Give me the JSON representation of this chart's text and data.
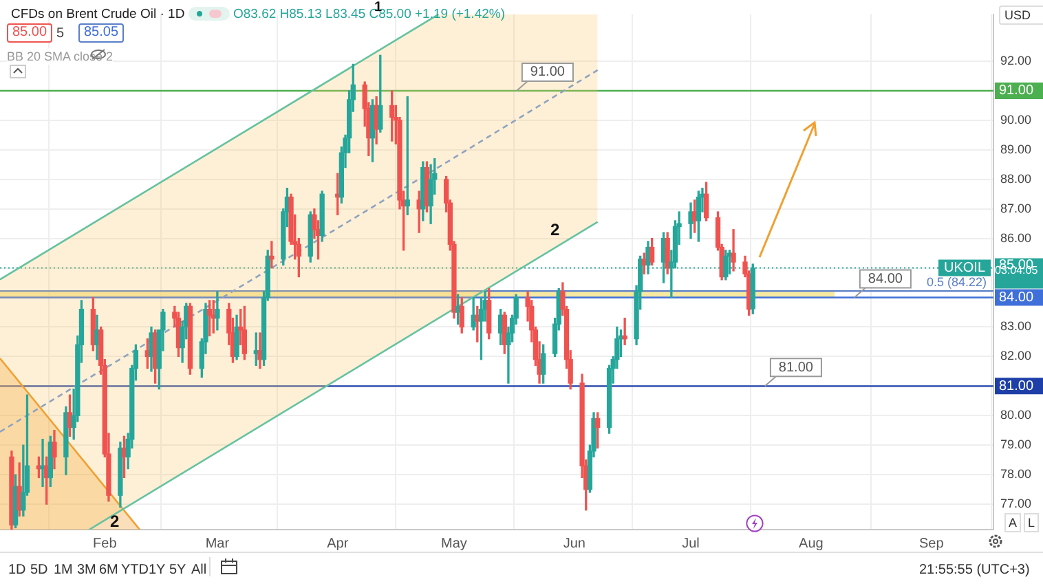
{
  "chart_data": {
    "type": "candlestick",
    "title": "CFDs on Brent Crude Oil · 1D",
    "subtitle": "O83.62 H85.13 L83.45 C85.00 +1.19 (+1.42%)",
    "x": [
      "--01-08",
      "--01-09",
      "--01-10",
      "--01-11",
      "--01-12",
      "--01-15",
      "--01-16",
      "--01-17",
      "--01-18",
      "--01-19",
      "--01-22",
      "--01-23",
      "--01-24",
      "--01-25",
      "--01-26",
      "--01-29",
      "--01-30",
      "--01-31",
      "--02-01",
      "--02-02",
      "--02-05",
      "--02-06",
      "--02-07",
      "--02-08",
      "--02-09",
      "--02-12",
      "--02-13",
      "--02-14",
      "--02-15",
      "--02-16",
      "--02-19",
      "--02-20",
      "--02-21",
      "--02-22",
      "--02-23",
      "--02-26",
      "--02-27",
      "--02-28",
      "--02-29",
      "--03-01",
      "--03-04",
      "--03-05",
      "--03-06",
      "--03-07",
      "--03-08",
      "--03-11",
      "--03-12",
      "--03-13",
      "--03-14",
      "--03-15",
      "--03-18",
      "--03-19",
      "--03-20",
      "--03-21",
      "--03-22",
      "--03-25",
      "--03-26",
      "--03-27",
      "--03-28",
      "--04-01",
      "--04-02",
      "--04-03",
      "--04-04",
      "--04-05",
      "--04-08",
      "--04-09",
      "--04-10",
      "--04-11",
      "--04-12",
      "--04-15",
      "--04-16",
      "--04-17",
      "--04-18",
      "--04-19",
      "--04-22",
      "--04-23",
      "--04-24",
      "--04-25",
      "--04-26",
      "--04-29",
      "--04-30",
      "--05-01",
      "--05-02",
      "--05-03",
      "--05-06",
      "--05-07",
      "--05-08",
      "--05-09",
      "--05-10",
      "--05-13",
      "--05-14",
      "--05-15",
      "--05-16",
      "--05-17",
      "--05-20",
      "--05-21",
      "--05-22",
      "--05-23",
      "--05-24",
      "--05-27",
      "--05-28",
      "--05-29",
      "--05-30",
      "--05-31",
      "--06-03",
      "--06-04",
      "--06-05",
      "--06-06",
      "--06-07",
      "--06-10",
      "--06-11",
      "--06-12",
      "--06-13",
      "--06-14",
      "--06-17",
      "--06-18",
      "--06-19",
      "--06-20",
      "--06-21",
      "--06-24",
      "--06-25",
      "--06-26",
      "--06-27",
      "--06-28",
      "--07-01",
      "--07-02",
      "--07-03",
      "--07-04",
      "--07-05",
      "--07-08",
      "--07-09",
      "--07-10",
      "--07-11",
      "--07-12",
      "--07-15",
      "--07-16",
      "--07-17"
    ],
    "ohlc": [
      [
        78.6,
        78.8,
        76.15,
        76.3
      ],
      [
        76.3,
        78.0,
        76.2,
        77.6
      ],
      [
        77.6,
        78.4,
        76.6,
        76.8
      ],
      [
        76.8,
        79.0,
        76.6,
        77.4
      ],
      [
        77.4,
        80.7,
        77.3,
        78.3
      ],
      [
        78.3,
        78.6,
        77.9,
        78.2
      ],
      [
        78.2,
        79.2,
        77.6,
        78.3
      ],
      [
        78.3,
        78.6,
        77.0,
        77.9
      ],
      [
        77.9,
        79.3,
        77.6,
        79.1
      ],
      [
        79.1,
        79.5,
        78.2,
        78.6
      ],
      [
        78.6,
        80.3,
        78.0,
        80.1
      ],
      [
        80.1,
        80.7,
        79.3,
        79.6
      ],
      [
        79.6,
        80.9,
        79.2,
        80.0
      ],
      [
        80.0,
        82.7,
        79.8,
        82.4
      ],
      [
        82.4,
        83.9,
        81.8,
        83.6
      ],
      [
        83.6,
        84.0,
        82.2,
        82.4
      ],
      [
        82.4,
        83.4,
        81.9,
        82.9
      ],
      [
        82.9,
        83.0,
        81.4,
        81.7
      ],
      [
        81.7,
        81.9,
        78.6,
        78.7
      ],
      [
        78.7,
        79.4,
        77.1,
        77.3
      ],
      [
        77.3,
        79.1,
        76.9,
        78.9
      ],
      [
        78.9,
        79.3,
        77.9,
        78.6
      ],
      [
        78.6,
        79.4,
        78.2,
        79.2
      ],
      [
        79.2,
        81.7,
        78.9,
        81.6
      ],
      [
        81.6,
        82.4,
        81.2,
        82.2
      ],
      [
        82.2,
        82.6,
        81.6,
        82.0
      ],
      [
        82.0,
        83.0,
        81.5,
        82.8
      ],
      [
        82.8,
        82.9,
        81.1,
        81.6
      ],
      [
        81.6,
        82.9,
        80.9,
        82.9
      ],
      [
        82.9,
        83.6,
        82.2,
        83.5
      ],
      [
        83.5,
        83.7,
        83.0,
        83.3
      ],
      [
        83.3,
        83.5,
        82.0,
        82.3
      ],
      [
        82.3,
        83.2,
        81.8,
        83.0
      ],
      [
        83.0,
        83.8,
        82.6,
        83.7
      ],
      [
        83.7,
        83.8,
        81.4,
        81.6
      ],
      [
        81.6,
        82.6,
        81.3,
        82.5
      ],
      [
        82.5,
        83.8,
        82.1,
        83.6
      ],
      [
        83.6,
        83.9,
        82.7,
        83.4
      ],
      [
        83.4,
        83.9,
        82.8,
        83.3
      ],
      [
        83.3,
        84.2,
        82.9,
        83.6
      ],
      [
        83.6,
        83.8,
        82.4,
        82.8
      ],
      [
        82.8,
        83.3,
        81.8,
        82.0
      ],
      [
        82.0,
        83.4,
        81.9,
        83.0
      ],
      [
        83.0,
        83.6,
        82.4,
        82.9
      ],
      [
        82.9,
        83.7,
        81.9,
        82.1
      ],
      [
        82.1,
        82.8,
        81.7,
        82.2
      ],
      [
        82.2,
        82.8,
        81.6,
        81.9
      ],
      [
        81.9,
        84.2,
        81.7,
        84.0
      ],
      [
        84.0,
        85.6,
        83.9,
        85.4
      ],
      [
        85.4,
        85.9,
        85.0,
        85.3
      ],
      [
        85.3,
        87.0,
        85.1,
        86.9
      ],
      [
        86.9,
        87.7,
        86.4,
        87.4
      ],
      [
        87.4,
        87.5,
        85.8,
        85.9
      ],
      [
        85.9,
        86.8,
        85.3,
        85.8
      ],
      [
        85.8,
        86.0,
        84.7,
        85.4
      ],
      [
        85.4,
        86.9,
        85.2,
        86.8
      ],
      [
        86.8,
        87.0,
        86.0,
        86.3
      ],
      [
        86.3,
        86.6,
        85.3,
        86.1
      ],
      [
        86.1,
        87.6,
        85.9,
        87.5
      ],
      [
        87.5,
        88.2,
        86.8,
        87.4
      ],
      [
        87.4,
        89.1,
        87.2,
        88.9
      ],
      [
        88.9,
        89.5,
        88.4,
        89.4
      ],
      [
        89.4,
        91.0,
        88.9,
        90.7
      ],
      [
        90.7,
        91.9,
        90.3,
        91.2
      ],
      [
        91.2,
        91.3,
        89.8,
        90.4
      ],
      [
        90.4,
        90.6,
        88.8,
        89.4
      ],
      [
        89.4,
        90.7,
        88.6,
        90.5
      ],
      [
        90.5,
        90.8,
        89.2,
        89.7
      ],
      [
        89.7,
        92.2,
        89.6,
        90.5
      ],
      [
        90.5,
        91.0,
        89.3,
        90.1
      ],
      [
        90.1,
        90.5,
        89.2,
        90.0
      ],
      [
        90.0,
        90.1,
        87.0,
        87.3
      ],
      [
        87.3,
        87.6,
        85.6,
        87.1
      ],
      [
        87.1,
        90.8,
        86.8,
        87.3
      ],
      [
        87.3,
        87.6,
        86.2,
        87.0
      ],
      [
        87.0,
        88.6,
        86.6,
        88.4
      ],
      [
        88.4,
        88.6,
        86.9,
        87.1
      ],
      [
        87.1,
        88.5,
        86.5,
        88.0
      ],
      [
        88.0,
        88.7,
        87.5,
        88.2
      ],
      [
        88.0,
        88.1,
        86.9,
        87.2
      ],
      [
        87.2,
        87.3,
        85.6,
        85.8
      ],
      [
        85.8,
        85.9,
        83.3,
        83.5
      ],
      [
        83.5,
        84.1,
        83.1,
        83.7
      ],
      [
        83.7,
        84.0,
        82.8,
        83.0
      ],
      [
        83.0,
        84.0,
        82.9,
        83.4
      ],
      [
        83.4,
        83.7,
        82.5,
        83.2
      ],
      [
        83.2,
        84.0,
        81.9,
        83.6
      ],
      [
        83.6,
        84.2,
        83.2,
        83.9
      ],
      [
        83.9,
        84.3,
        82.6,
        82.8
      ],
      [
        82.8,
        83.6,
        82.4,
        83.4
      ],
      [
        83.4,
        83.5,
        82.1,
        82.4
      ],
      [
        82.4,
        83.0,
        81.1,
        82.8
      ],
      [
        82.8,
        83.4,
        82.5,
        83.3
      ],
      [
        83.3,
        84.1,
        83.1,
        84.0
      ],
      [
        84.0,
        84.2,
        83.2,
        83.7
      ],
      [
        83.7,
        83.9,
        82.5,
        82.9
      ],
      [
        82.9,
        83.0,
        81.7,
        81.9
      ],
      [
        81.9,
        82.5,
        81.1,
        81.4
      ],
      [
        81.4,
        82.4,
        81.1,
        82.1
      ],
      [
        82.1,
        83.3,
        82.0,
        83.1
      ],
      [
        83.1,
        84.3,
        82.9,
        84.2
      ],
      [
        84.2,
        84.5,
        83.4,
        83.6
      ],
      [
        83.6,
        83.7,
        81.6,
        81.9
      ],
      [
        81.9,
        82.2,
        80.9,
        81.1
      ],
      [
        81.1,
        81.4,
        77.9,
        78.3
      ],
      [
        78.3,
        78.5,
        76.8,
        77.5
      ],
      [
        77.5,
        79.0,
        77.4,
        78.8
      ],
      [
        78.8,
        80.1,
        78.6,
        79.9
      ],
      [
        79.9,
        80.1,
        78.9,
        79.6
      ],
      [
        79.6,
        81.7,
        79.4,
        81.6
      ],
      [
        81.6,
        82.0,
        81.1,
        81.9
      ],
      [
        81.9,
        83.0,
        81.6,
        82.6
      ],
      [
        82.6,
        82.9,
        82.0,
        82.7
      ],
      [
        82.7,
        83.3,
        82.4,
        82.6
      ],
      [
        82.6,
        84.4,
        82.4,
        84.2
      ],
      [
        84.2,
        85.4,
        83.6,
        85.3
      ],
      [
        85.3,
        85.5,
        84.8,
        85.1
      ],
      [
        85.1,
        85.9,
        84.8,
        85.7
      ],
      [
        85.7,
        86.0,
        85.1,
        85.2
      ],
      [
        85.2,
        86.2,
        84.5,
        86.0
      ],
      [
        86.0,
        86.2,
        84.8,
        85.0
      ],
      [
        85.0,
        85.6,
        84.0,
        85.2
      ],
      [
        85.2,
        86.6,
        85.0,
        86.4
      ],
      [
        86.4,
        86.9,
        85.8,
        86.5
      ],
      [
        86.5,
        87.2,
        86.0,
        86.9
      ],
      [
        86.9,
        87.3,
        86.2,
        86.6
      ],
      [
        86.6,
        87.6,
        85.9,
        87.4
      ],
      [
        87.4,
        87.7,
        86.9,
        87.5
      ],
      [
        87.5,
        87.9,
        86.6,
        86.7
      ],
      [
        86.7,
        86.9,
        85.6,
        85.7
      ],
      [
        85.7,
        85.8,
        84.6,
        84.7
      ],
      [
        84.7,
        85.6,
        84.6,
        85.4
      ],
      [
        85.4,
        85.6,
        84.8,
        85.5
      ],
      [
        85.5,
        86.3,
        84.9,
        85.2
      ],
      [
        85.2,
        85.4,
        84.7,
        84.8
      ],
      [
        84.8,
        84.9,
        83.4,
        83.6
      ],
      [
        83.62,
        85.13,
        83.45,
        85.0
      ]
    ],
    "colors": [
      "#ef5350",
      "#26a69a",
      "#ef5350",
      "#26a69a",
      "#26a69a",
      "#ef5350",
      "#26a69a",
      "#ef5350",
      "#26a69a",
      "#ef5350",
      "#26a69a",
      "#ef5350",
      "#26a69a",
      "#26a69a",
      "#26a69a",
      "#ef5350",
      "#26a69a",
      "#ef5350",
      "#ef5350",
      "#ef5350",
      "#26a69a",
      "#ef5350",
      "#26a69a",
      "#26a69a",
      "#26a69a",
      "#ef5350",
      "#26a69a",
      "#ef5350",
      "#26a69a",
      "#26a69a",
      "#ef5350",
      "#ef5350",
      "#26a69a",
      "#26a69a",
      "#ef5350",
      "#26a69a",
      "#26a69a",
      "#ef5350",
      "#ef5350",
      "#26a69a",
      "#ef5350",
      "#ef5350",
      "#26a69a",
      "#ef5350",
      "#ef5350",
      "#26a69a",
      "#ef5350",
      "#26a69a",
      "#26a69a",
      "#ef5350",
      "#26a69a",
      "#26a69a",
      "#ef5350",
      "#ef5350",
      "#ef5350",
      "#26a69a",
      "#ef5350",
      "#ef5350",
      "#26a69a",
      "#ef5350",
      "#26a69a",
      "#26a69a",
      "#26a69a",
      "#26a69a",
      "#ef5350",
      "#ef5350",
      "#26a69a",
      "#ef5350",
      "#26a69a",
      "#ef5350",
      "#ef5350",
      "#ef5350",
      "#ef5350",
      "#26a69a",
      "#ef5350",
      "#26a69a",
      "#ef5350",
      "#26a69a",
      "#26a69a",
      "#ef5350",
      "#ef5350",
      "#ef5350",
      "#26a69a",
      "#ef5350",
      "#26a69a",
      "#ef5350",
      "#26a69a",
      "#26a69a",
      "#ef5350",
      "#26a69a",
      "#ef5350",
      "#26a69a",
      "#26a69a",
      "#26a69a",
      "#ef5350",
      "#ef5350",
      "#ef5350",
      "#ef5350",
      "#26a69a",
      "#26a69a",
      "#26a69a",
      "#ef5350",
      "#ef5350",
      "#ef5350",
      "#ef5350",
      "#ef5350",
      "#26a69a",
      "#26a69a",
      "#ef5350",
      "#26a69a",
      "#26a69a",
      "#26a69a",
      "#26a69a",
      "#ef5350",
      "#26a69a",
      "#26a69a",
      "#ef5350",
      "#26a69a",
      "#ef5350",
      "#26a69a",
      "#ef5350",
      "#26a69a",
      "#26a69a",
      "#26a69a",
      "#26a69a",
      "#ef5350",
      "#26a69a",
      "#26a69a",
      "#ef5350",
      "#ef5350",
      "#ef5350",
      "#26a69a",
      "#26a69a",
      "#ef5350",
      "#ef5350",
      "#ef5350",
      "#26a69a"
    ],
    "series": [
      {
        "type": "line",
        "color": "#8fa3bf",
        "line_style": "dashed",
        "x": [
          "--01-05",
          "--01-28",
          "--04-27",
          "--06-07"
        ],
        "values": [
          79.45,
          81.28,
          88.41,
          91.7
        ],
        "lower": [
          76.14,
          76.14,
          83.28,
          86.56
        ],
        "upper": [
          84.61,
          86.44,
          93.59,
          93.59
        ]
      },
      {
        "type": "line",
        "color": "#66c2a0",
        "x": [
          "--01-05",
          "--04-27"
        ],
        "values": [
          84.61,
          93.59
        ]
      },
      {
        "type": "line",
        "color": "#66c2a0",
        "x": [
          "--01-28",
          "--06-07"
        ],
        "values": [
          76.14,
          86.56
        ]
      },
      {
        "type": "line",
        "color": "#f0a030",
        "x": [
          "--01-05",
          "--02-10"
        ],
        "values": [
          81.94,
          76.14
        ],
        "lower": [
          76.14,
          76.14
        ],
        "upper": [
          81.94,
          76.14
        ]
      }
    ],
    "xlim": [
      "--01-05",
      "--09-17"
    ],
    "xticks": [
      {
        "value": "--02-01",
        "label": "Feb"
      },
      {
        "value": "--03-01",
        "label": "Mar"
      },
      {
        "value": "--04-01",
        "label": "Apr"
      },
      {
        "value": "--05-01",
        "label": "May"
      },
      {
        "value": "--06-01",
        "label": "Jun"
      },
      {
        "value": "--07-01",
        "label": "Jul"
      },
      {
        "value": "--08-01",
        "label": "Aug"
      },
      {
        "value": "--09-01",
        "label": "Sep"
      }
    ],
    "ylim": [
      76.14,
      93.59
    ],
    "yticks": [
      {
        "value": 77,
        "label": "77.00"
      },
      {
        "value": 78,
        "label": "78.00"
      },
      {
        "value": 79,
        "label": "79.00"
      },
      {
        "value": 80,
        "label": "80.00"
      },
      {
        "value": 81,
        "label": null
      },
      {
        "value": 82,
        "label": "82.00"
      },
      {
        "value": 83,
        "label": "83.00"
      },
      {
        "value": 84,
        "label": null
      },
      {
        "value": 85,
        "label": null
      },
      {
        "value": 86,
        "label": "86.00"
      },
      {
        "value": 87,
        "label": "87.00"
      },
      {
        "value": 88,
        "label": "88.00"
      },
      {
        "value": 89,
        "label": "89.00"
      },
      {
        "value": 90,
        "label": "90.00"
      },
      {
        "value": 91,
        "label": null
      },
      {
        "value": 92,
        "label": "92.00"
      }
    ],
    "grid": true,
    "marker": "none",
    "bands": [
      {
        "axis": "y",
        "from": 84,
        "to": 84.22,
        "color": "#f3e07a"
      }
    ],
    "ref_lines": [
      {
        "axis": "y",
        "value": 91,
        "label": "91.00",
        "color": "#4caf50"
      },
      {
        "axis": "y",
        "value": 84.22,
        "label": "0.5 (84.22)",
        "color": "#5b7fc7"
      },
      {
        "axis": "y",
        "value": 84,
        "label": "84.00",
        "color": "#3f6fd8"
      },
      {
        "axis": "y",
        "value": 81,
        "label": "81.00",
        "color": "#1e3fa8"
      },
      {
        "axis": "y",
        "value": 85,
        "label": "UKOIL",
        "color": "#26a69a",
        "line_style": "dotted"
      }
    ],
    "annotations": [
      "1",
      "2",
      "2",
      "85.00",
      "5",
      "85.05",
      "BB 20 SMA close 2",
      "USD",
      "03:04:05",
      "1D",
      "5D",
      "1M",
      "3M",
      "6M",
      "YTD",
      "1Y",
      "5Y",
      "All",
      "21:55:55 (UTC+3)",
      "A",
      "L"
    ]
  }
}
